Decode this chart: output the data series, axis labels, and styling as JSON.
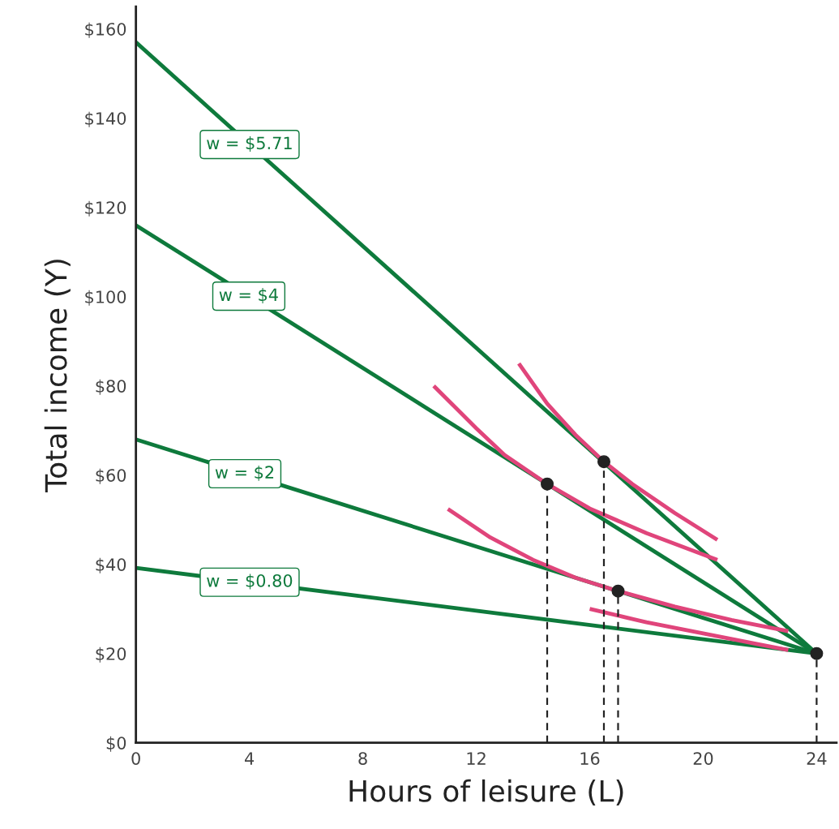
{
  "chart_data": {
    "type": "line",
    "xlabel": "Hours of leisure (L)",
    "ylabel": "Total income (Y)",
    "xlim": [
      0,
      24.7
    ],
    "ylim": [
      0,
      165
    ],
    "xticks": [
      0,
      4,
      8,
      12,
      16,
      20,
      24
    ],
    "yticks": [
      {
        "value": 0,
        "label": "$0"
      },
      {
        "value": 20,
        "label": "$20"
      },
      {
        "value": 40,
        "label": "$40"
      },
      {
        "value": 60,
        "label": "$60"
      },
      {
        "value": 80,
        "label": "$80"
      },
      {
        "value": 100,
        "label": "$100"
      },
      {
        "value": 120,
        "label": "$120"
      },
      {
        "value": 140,
        "label": "$140"
      },
      {
        "value": 160,
        "label": "$160"
      }
    ],
    "grid": false,
    "legend": false,
    "series": [
      {
        "x": [
          0,
          24
        ],
        "values": [
          157,
          20
        ],
        "color": "#0e7a3c"
      },
      {
        "x": [
          0,
          24
        ],
        "values": [
          116,
          20
        ],
        "color": "#0e7a3c"
      },
      {
        "x": [
          0,
          24
        ],
        "values": [
          68,
          20
        ],
        "color": "#0e7a3c"
      },
      {
        "x": [
          0,
          24
        ],
        "values": [
          39.2,
          20
        ],
        "color": "#0e7a3c"
      },
      {
        "type": "line",
        "x": [
          10.5,
          12,
          13,
          14.5,
          16,
          18,
          20.5
        ],
        "values": [
          80,
          70.5,
          64.5,
          58,
          52.5,
          47,
          41
        ],
        "color": "#e0457b"
      },
      {
        "type": "line",
        "x": [
          13.5,
          14.5,
          15.5,
          16.5,
          17.5,
          19,
          20.5
        ],
        "values": [
          85,
          76,
          69,
          63,
          58,
          51.5,
          45.5
        ],
        "color": "#e0457b"
      },
      {
        "type": "line",
        "x": [
          11,
          12.5,
          14,
          15.5,
          17,
          19,
          21,
          23
        ],
        "values": [
          52.4,
          46,
          41,
          37,
          34,
          30.5,
          27.5,
          25
        ],
        "color": "#e0457b"
      },
      {
        "type": "line",
        "x": [
          16,
          18,
          20,
          22,
          23
        ],
        "values": [
          30,
          27,
          24.5,
          22,
          20.8
        ],
        "color": "#e0457b"
      },
      {
        "type": "line",
        "x": [
          14.5,
          14.5
        ],
        "values": [
          0,
          58
        ],
        "color": "#222222",
        "line_style": "dashed"
      },
      {
        "type": "line",
        "x": [
          16.5,
          16.5
        ],
        "values": [
          0,
          63
        ],
        "color": "#222222",
        "line_style": "dashed"
      },
      {
        "type": "line",
        "x": [
          17,
          17
        ],
        "values": [
          0,
          34
        ],
        "color": "#222222",
        "line_style": "dashed"
      },
      {
        "type": "line",
        "x": [
          24,
          24
        ],
        "values": [
          0,
          20
        ],
        "color": "#222222",
        "line_style": "dashed"
      },
      {
        "type": "scatter",
        "x": [
          14.5,
          16.5,
          17,
          24
        ],
        "values": [
          58,
          63,
          34,
          20
        ],
        "color": "#222222",
        "marker": "circle"
      }
    ],
    "annotations": [
      {
        "text": "w = $5.71",
        "x": 4.01,
        "y": 134.1
      },
      {
        "text": "w = $4",
        "x": 3.98,
        "y": 100.1
      },
      {
        "text": "w = $2",
        "x": 3.84,
        "y": 60.3
      },
      {
        "text": "w = $0.80",
        "x": 4.01,
        "y": 36
      }
    ]
  }
}
